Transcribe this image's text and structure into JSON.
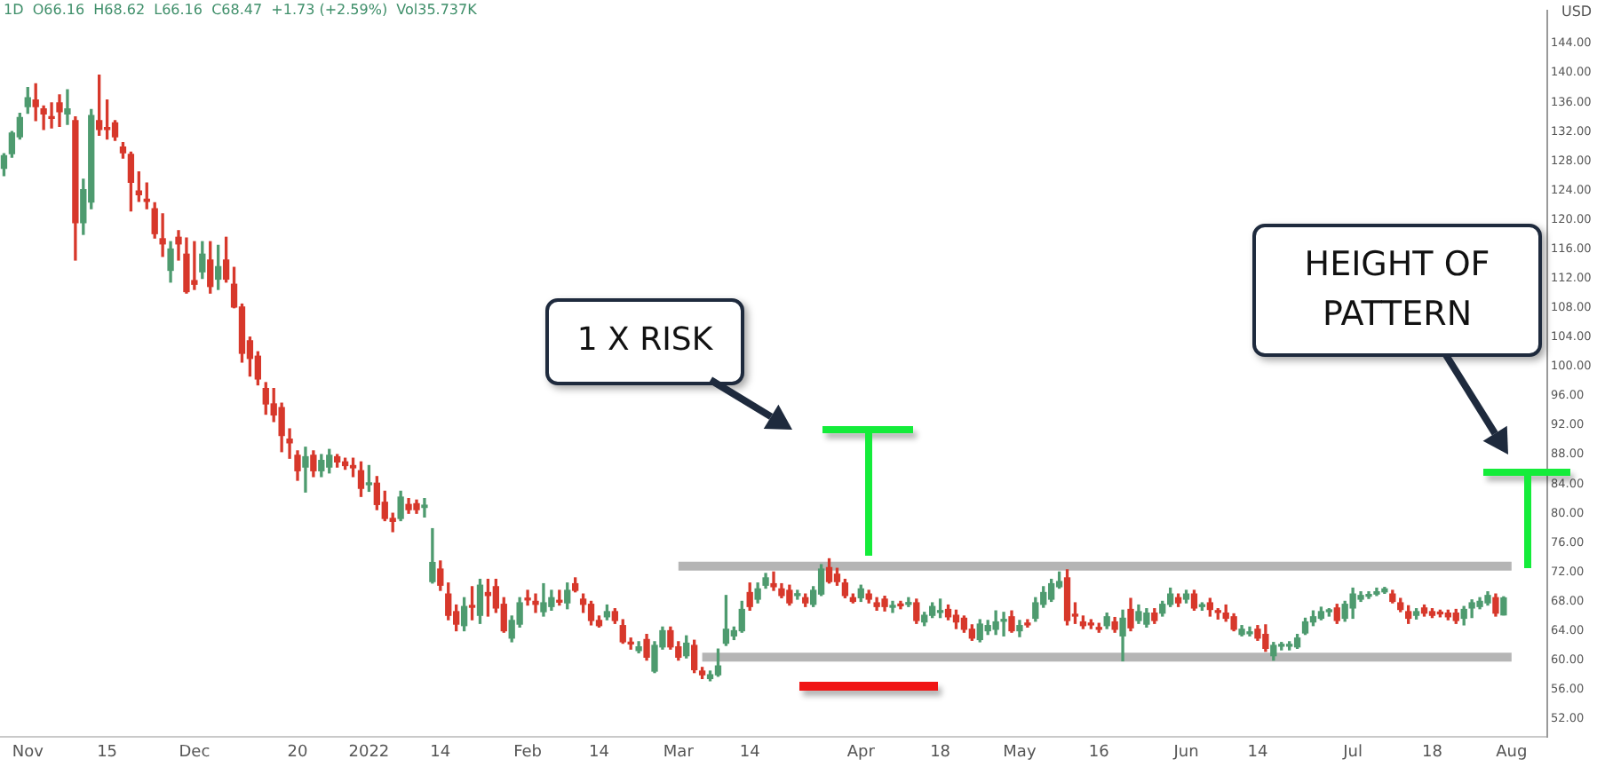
{
  "chart_data": {
    "type": "candlestick",
    "title": "1D  O66.16  H68.62  L66.16  C68.47  +1.73 (+2.59%)  Vol35.737K",
    "ylabel": "USD",
    "annotations": [
      "1 X RISK",
      "HEIGHT OF PATTERN"
    ],
    "grid": false,
    "colors": [
      "#4e9b6f",
      "#4e9b6f",
      "#4e9b6f",
      "#4e9b6f",
      "#d7382b",
      "#d7382b",
      "#d7382b",
      "#d7382b",
      "#4e9b6f",
      "#d7382b",
      "#4e9b6f",
      "#4e9b6f",
      "#d7382b",
      "#d7382b",
      "#d7382b",
      "#d7382b",
      "#d7382b",
      "#d7382b",
      "#d7382b",
      "#d7382b",
      "#d7382b",
      "#4e9b6f",
      "#d7382b",
      "#d7382b",
      "#d7382b",
      "#4e9b6f",
      "#d7382b",
      "#4e9b6f",
      "#d7382b",
      "#d7382b",
      "#d7382b",
      "#d7382b",
      "#d7382b",
      "#d7382b",
      "#d7382b",
      "#d7382b",
      "#d7382b",
      "#d7382b",
      "#4e9b6f",
      "#d7382b",
      "#4e9b6f",
      "#4e9b6f",
      "#d7382b",
      "#d7382b",
      "#d7382b",
      "#d7382b",
      "#4e9b6f",
      "#d7382b",
      "#d7382b",
      "#d7382b",
      "#4e9b6f",
      "#d7382b",
      "#d7382b",
      "#4e9b6f",
      "#4e9b6f",
      "#d7382b",
      "#d7382b",
      "#d7382b",
      "#4e9b6f",
      "#d7382b",
      "#4e9b6f",
      "#d7382b",
      "#d7382b",
      "#d7382b",
      "#4e9b6f",
      "#4e9b6f",
      "#d7382b",
      "#d7382b",
      "#4e9b6f",
      "#4e9b6f",
      "#d7382b",
      "#4e9b6f",
      "#d7382b",
      "#d7382b",
      "#d7382b",
      "#d7382b",
      "#4e9b6f",
      "#d7382b",
      "#d7382b",
      "#d7382b",
      "#4e9b6f",
      "#d7382b",
      "#4e9b6f",
      "#4e9b6f",
      "#d7382b",
      "#d7382b",
      "#4e9b6f",
      "#d7382b",
      "#d7382b",
      "#4e9b6f",
      "#4e9b6f",
      "#4e9b6f",
      "#4e9b6f",
      "#4e9b6f",
      "#d7382b",
      "#4e9b6f",
      "#4e9b6f",
      "#d7382b",
      "#d7382b",
      "#d7382b",
      "#4e9b6f",
      "#d7382b",
      "#4e9b6f",
      "#4e9b6f",
      "#d7382b",
      "#d7382b",
      "#d7382b",
      "#d7382b",
      "#4e9b6f",
      "#d7382b",
      "#d7382b",
      "#d7382b",
      "#4e9b6f",
      "#d7382b",
      "#4e9b6f",
      "#d7382b",
      "#4e9b6f",
      "#4e9b6f",
      "#4e9b6f",
      "#d7382b",
      "#d7382b",
      "#d7382b",
      "#d7382b",
      "#4e9b6f",
      "#4e9b6f",
      "#4e9b6f",
      "#4e9b6f",
      "#d7382b",
      "#4e9b6f",
      "#d7382b",
      "#4e9b6f",
      "#4e9b6f",
      "#4e9b6f",
      "#4e9b6f",
      "#d7382b",
      "#d7382b",
      "#d7382b",
      "#d7382b",
      "#d7382b",
      "#4e9b6f",
      "#d7382b",
      "#4e9b6f",
      "#d7382b",
      "#4e9b6f",
      "#4e9b6f",
      "#d7382b",
      "#4e9b6f",
      "#4e9b6f",
      "#d7382b",
      "#4e9b6f",
      "#d7382b",
      "#4e9b6f",
      "#d7382b",
      "#d7382b",
      "#d7382b",
      "#d7382b",
      "#4e9b6f",
      "#4e9b6f",
      "#d7382b",
      "#d7382b",
      "#4e9b6f",
      "#4e9b6f",
      "#4e9b6f",
      "#4e9b6f",
      "#4e9b6f",
      "#4e9b6f",
      "#4e9b6f",
      "#4e9b6f",
      "#d7382b",
      "#4e9b6f",
      "#4e9b6f",
      "#4e9b6f",
      "#4e9b6f",
      "#4e9b6f",
      "#4e9b6f",
      "#d7382b",
      "#d7382b",
      "#d7382b",
      "#4e9b6f",
      "#d7382b",
      "#d7382b",
      "#d7382b",
      "#d7382b",
      "#d7382b",
      "#4e9b6f",
      "#4e9b6f",
      "#4e9b6f",
      "#4e9b6f",
      "#d7382b",
      "#4e9b6f",
      null
    ],
    "ylim": [
      49.5,
      148.5
    ],
    "yticks": [
      {
        "value": 52,
        "label": "52.00"
      },
      {
        "value": 56,
        "label": "56.00"
      },
      {
        "value": 60,
        "label": "60.00"
      },
      {
        "value": 64,
        "label": "64.00"
      },
      {
        "value": 68,
        "label": "68.00"
      },
      {
        "value": 72,
        "label": "72.00"
      },
      {
        "value": 76,
        "label": "76.00"
      },
      {
        "value": 80,
        "label": "80.00"
      },
      {
        "value": 84,
        "label": "84.00"
      },
      {
        "value": 88,
        "label": "88.00"
      },
      {
        "value": 92,
        "label": "92.00"
      },
      {
        "value": 96,
        "label": "96.00"
      },
      {
        "value": 100,
        "label": "100.00"
      },
      {
        "value": 104,
        "label": "104.00"
      },
      {
        "value": 108,
        "label": "108.00"
      },
      {
        "value": 112,
        "label": "112.00"
      },
      {
        "value": 116,
        "label": "116.00"
      },
      {
        "value": 120,
        "label": "120.00"
      },
      {
        "value": 124,
        "label": "124.00"
      },
      {
        "value": 128,
        "label": "128.00"
      },
      {
        "value": 132,
        "label": "132.00"
      },
      {
        "value": 136,
        "label": "136.00"
      },
      {
        "value": 140,
        "label": "140.00"
      },
      {
        "value": 144,
        "label": "144.00"
      }
    ],
    "categories": [
      null,
      null,
      null,
      "Nov",
      null,
      null,
      null,
      null,
      null,
      null,
      null,
      null,
      null,
      "15",
      null,
      null,
      null,
      null,
      null,
      null,
      null,
      null,
      null,
      null,
      "Dec",
      null,
      null,
      null,
      null,
      null,
      null,
      null,
      null,
      null,
      null,
      null,
      null,
      "20",
      null,
      null,
      null,
      null,
      null,
      null,
      null,
      null,
      "2022",
      null,
      null,
      null,
      null,
      null,
      null,
      null,
      null,
      "14",
      null,
      null,
      null,
      null,
      null,
      null,
      null,
      null,
      null,
      null,
      "Feb",
      null,
      null,
      null,
      null,
      null,
      null,
      null,
      null,
      "14",
      null,
      null,
      null,
      null,
      null,
      null,
      null,
      null,
      null,
      "Mar",
      null,
      null,
      null,
      null,
      null,
      null,
      null,
      null,
      "14",
      null,
      null,
      null,
      null,
      null,
      null,
      null,
      null,
      null,
      null,
      null,
      null,
      null,
      "Apr",
      null,
      null,
      null,
      null,
      null,
      null,
      null,
      null,
      null,
      "18",
      null,
      null,
      null,
      null,
      null,
      null,
      null,
      null,
      null,
      "May",
      null,
      null,
      null,
      null,
      null,
      null,
      null,
      null,
      null,
      "16",
      null,
      null,
      null,
      null,
      null,
      null,
      null,
      null,
      null,
      null,
      "Jun",
      null,
      null,
      null,
      null,
      null,
      null,
      null,
      null,
      "14",
      null,
      null,
      null,
      null,
      null,
      null,
      null,
      null,
      null,
      null,
      null,
      "Jul",
      null,
      null,
      null,
      null,
      null,
      null,
      null,
      null,
      null,
      "18",
      null,
      null,
      null,
      null,
      null,
      null,
      null,
      null,
      null,
      "Aug"
    ],
    "ohlc": [
      [
        127,
        129,
        126,
        128.7
      ],
      [
        129,
        132,
        128.5,
        131.8
      ],
      [
        131.3,
        134.5,
        131,
        133.9
      ],
      [
        135.4,
        138,
        134.5,
        136.6
      ],
      [
        136.3,
        138.5,
        133.5,
        135.4
      ],
      [
        135.1,
        135.5,
        132.3,
        134.4
      ],
      [
        134,
        135.9,
        132.5,
        133.8
      ],
      [
        135.9,
        137,
        132.7,
        134.7
      ],
      [
        134.4,
        137.7,
        133,
        135.1
      ],
      [
        133.5,
        134,
        114.5,
        119.6
      ],
      [
        119.6,
        125.5,
        118,
        124.1
      ],
      [
        122.4,
        135,
        121.5,
        134.2
      ],
      [
        133.5,
        139.7,
        131.5,
        132.3
      ],
      [
        132.5,
        136.3,
        131,
        132.3
      ],
      [
        133.2,
        133.5,
        130.8,
        131.3
      ],
      [
        129.9,
        130.5,
        128.4,
        129.1
      ],
      [
        128.9,
        129.2,
        121.2,
        125.1
      ],
      [
        123.9,
        126.5,
        122.5,
        123.4
      ],
      [
        122.8,
        125,
        121.5,
        122.5
      ],
      [
        121.5,
        122.3,
        117.5,
        118.1
      ],
      [
        117.4,
        120.8,
        115,
        116.7
      ],
      [
        113.1,
        117,
        111.5,
        116
      ],
      [
        117.6,
        118.5,
        114.5,
        116.7
      ],
      [
        115.3,
        117.5,
        110,
        110.2
      ],
      [
        111.7,
        117,
        110.5,
        111.2
      ],
      [
        112.9,
        117,
        112,
        115.3
      ],
      [
        114.5,
        117,
        110,
        110.9
      ],
      [
        111.9,
        116.5,
        110.5,
        113.6
      ],
      [
        114.5,
        117.6,
        111.5,
        111.9
      ],
      [
        111.2,
        113.5,
        108,
        108.1
      ],
      [
        108.1,
        108.5,
        100.6,
        101.8
      ],
      [
        103.5,
        104,
        98.7,
        101.1
      ],
      [
        101.4,
        102,
        97.5,
        98.3
      ],
      [
        97,
        97.8,
        93.5,
        94.9
      ],
      [
        94.9,
        97,
        92.5,
        93.4
      ],
      [
        94.4,
        95,
        88.4,
        90.6
      ],
      [
        90.1,
        91.5,
        87.5,
        89.6
      ],
      [
        87.9,
        88.5,
        84.5,
        85.8
      ],
      [
        86.3,
        89,
        82.9,
        87.7
      ],
      [
        87.9,
        88.5,
        85,
        85.8
      ],
      [
        85.8,
        88,
        85,
        87.2
      ],
      [
        86.3,
        88.7,
        85.5,
        87.9
      ],
      [
        87.7,
        88,
        86.3,
        87
      ],
      [
        87,
        87.5,
        86,
        86.5
      ],
      [
        86.5,
        87.5,
        85,
        86.2
      ],
      [
        85.8,
        87,
        82.3,
        83.4
      ],
      [
        83.9,
        86.5,
        83,
        84.1
      ],
      [
        84.1,
        85,
        80.5,
        81.2
      ],
      [
        81.5,
        83,
        79,
        79.3
      ],
      [
        79.3,
        80,
        77.5,
        78.9
      ],
      [
        79.3,
        83,
        79,
        82.2
      ],
      [
        81.2,
        82,
        80,
        80.5
      ],
      [
        81.3,
        81.8,
        80,
        80.5
      ],
      [
        80.8,
        82,
        79.5,
        81.1
      ],
      [
        70.7,
        77.9,
        70.5,
        73.3
      ],
      [
        72.4,
        73.5,
        69.5,
        70.2
      ],
      [
        69,
        70.5,
        65.5,
        66.1
      ],
      [
        66.6,
        67.5,
        64,
        64.9
      ],
      [
        64.7,
        68.5,
        64,
        67.3
      ],
      [
        67.4,
        70,
        65.5,
        67.2
      ],
      [
        66.1,
        71,
        65,
        70.2
      ],
      [
        69.2,
        71,
        66,
        68.8
      ],
      [
        70,
        71,
        66.5,
        67.1
      ],
      [
        67.6,
        68.5,
        63.8,
        64
      ],
      [
        63,
        66,
        62.5,
        65.4
      ],
      [
        64.9,
        68.5,
        64.5,
        67.8
      ],
      [
        68.4,
        69.5,
        67.5,
        68.2
      ],
      [
        68,
        69,
        66.5,
        67.6
      ],
      [
        66.6,
        70.4,
        66,
        67.8
      ],
      [
        67.3,
        69.5,
        66.8,
        68.5
      ],
      [
        68.1,
        69.5,
        67.5,
        67.9
      ],
      [
        67.8,
        70.5,
        67,
        69.5
      ],
      [
        70.4,
        71.2,
        69.3,
        69.5
      ],
      [
        68.3,
        69,
        66.5,
        67.6
      ],
      [
        67.6,
        68,
        64.8,
        65.4
      ],
      [
        65.4,
        66,
        64.5,
        64.7
      ],
      [
        65.9,
        67.5,
        65.5,
        66.6
      ],
      [
        66.6,
        67,
        65,
        65.4
      ],
      [
        64.7,
        65.5,
        62.3,
        62.5
      ],
      [
        62.4,
        63,
        61.5,
        62.2
      ],
      [
        61.3,
        62.5,
        61,
        61.8
      ],
      [
        62.8,
        63.5,
        60,
        60.4
      ],
      [
        58.5,
        62.5,
        58.3,
        62
      ],
      [
        61.8,
        64.5,
        61.5,
        64
      ],
      [
        64,
        64.5,
        61.5,
        61.8
      ],
      [
        61.8,
        62.5,
        60,
        60.4
      ],
      [
        60.6,
        63.3,
        60.3,
        62.3
      ],
      [
        62,
        62.7,
        58.3,
        58.7
      ],
      [
        58.5,
        59,
        57.5,
        58
      ],
      [
        57.5,
        58.5,
        57.2,
        58
      ],
      [
        58,
        61.5,
        57.8,
        59.2
      ],
      [
        62.3,
        68.8,
        62,
        64.2
      ],
      [
        63.3,
        64.5,
        62.8,
        64
      ],
      [
        64,
        68,
        63.8,
        66.9
      ],
      [
        69.2,
        70.5,
        66.8,
        67.3
      ],
      [
        68.3,
        70.5,
        67.8,
        69.7
      ],
      [
        70.2,
        71.8,
        69.8,
        71.2
      ],
      [
        70.4,
        72,
        69.5,
        70
      ],
      [
        69.7,
        70.4,
        68.5,
        68.8
      ],
      [
        69.5,
        70.2,
        67.5,
        67.8
      ],
      [
        68.8,
        69.5,
        68.3,
        69
      ],
      [
        68.5,
        69,
        67.3,
        67.8
      ],
      [
        67.6,
        70,
        67.3,
        69.5
      ],
      [
        69,
        73,
        68.8,
        72.4
      ],
      [
        72.6,
        73.8,
        70.5,
        70.7
      ],
      [
        71.7,
        72.5,
        70.2,
        70.7
      ],
      [
        70.5,
        71,
        68.5,
        68.8
      ],
      [
        68.5,
        69,
        67.8,
        68
      ],
      [
        68.5,
        70.2,
        68,
        69.7
      ],
      [
        69,
        69.5,
        67.8,
        68.3
      ],
      [
        67.8,
        68.5,
        66.8,
        67.3
      ],
      [
        68.3,
        68.7,
        66.7,
        67.3
      ],
      [
        67.2,
        68,
        66.5,
        67.4
      ],
      [
        67.5,
        68,
        67,
        67.4
      ],
      [
        67.6,
        68.5,
        67.3,
        67.7
      ],
      [
        67.8,
        68.3,
        65,
        65.4
      ],
      [
        65.2,
        66.5,
        64.7,
        66.1
      ],
      [
        66.1,
        67.8,
        65.8,
        67.3
      ],
      [
        66.5,
        68.3,
        65.8,
        66.7
      ],
      [
        66.9,
        67.5,
        65.5,
        65.9
      ],
      [
        66.1,
        66.8,
        64.3,
        65.2
      ],
      [
        65.7,
        66,
        63.8,
        64.2
      ],
      [
        64.2,
        64.8,
        62.7,
        63
      ],
      [
        62.8,
        65.5,
        62.5,
        64.9
      ],
      [
        64,
        65.4,
        63.5,
        64.7
      ],
      [
        64.2,
        66.7,
        63.5,
        65.2
      ],
      [
        65.3,
        66.5,
        63.3,
        65.5
      ],
      [
        65.9,
        66.7,
        63.8,
        64
      ],
      [
        64,
        65.4,
        63.2,
        64.7
      ],
      [
        65,
        65.5,
        64.5,
        64.8
      ],
      [
        65.7,
        68.5,
        65.3,
        67.8
      ],
      [
        67.6,
        70,
        67.2,
        69.2
      ],
      [
        68.3,
        71,
        68,
        70.4
      ],
      [
        70,
        72,
        69.8,
        70.7
      ],
      [
        71.2,
        72.3,
        64.8,
        65.4
      ],
      [
        66.2,
        67.8,
        65,
        66
      ],
      [
        65.2,
        66,
        64.3,
        64.7
      ],
      [
        64.9,
        65.5,
        64.3,
        64.8
      ],
      [
        64.4,
        65,
        63.8,
        64.2
      ],
      [
        64.7,
        66.4,
        64.3,
        65.9
      ],
      [
        65.2,
        65.8,
        63.8,
        64.2
      ],
      [
        63.3,
        66.8,
        59.9,
        65.7
      ],
      [
        66.9,
        68.4,
        64,
        64.4
      ],
      [
        65.4,
        67.5,
        65,
        66.6
      ],
      [
        64.9,
        67,
        64.5,
        66.4
      ],
      [
        66.4,
        67,
        65,
        65.4
      ],
      [
        66.4,
        68,
        66,
        67.6
      ],
      [
        67.6,
        69.8,
        67.3,
        69
      ],
      [
        68.5,
        69,
        67.3,
        67.8
      ],
      [
        68.3,
        69.5,
        67.8,
        69
      ],
      [
        69,
        69.5,
        66.8,
        67.1
      ],
      [
        67.3,
        67.8,
        66.8,
        67.4
      ],
      [
        67.8,
        68.4,
        66,
        66.9
      ],
      [
        66.7,
        67,
        65.6,
        66.5
      ],
      [
        66.4,
        67.5,
        65.3,
        65.7
      ],
      [
        65.9,
        66.3,
        64,
        64.2
      ],
      [
        63.5,
        64.7,
        63.3,
        64.2
      ],
      [
        63.6,
        64.5,
        63.3,
        63.8
      ],
      [
        64.2,
        64.7,
        62.7,
        63
      ],
      [
        63.5,
        64.8,
        61.2,
        61.6
      ],
      [
        60.6,
        62.4,
        60,
        62
      ],
      [
        61.9,
        62.4,
        61.4,
        62.1
      ],
      [
        61.9,
        62.5,
        61.4,
        62.1
      ],
      [
        61.8,
        63.5,
        61.6,
        63
      ],
      [
        63.7,
        65.7,
        63.5,
        65.2
      ],
      [
        65.2,
        66.7,
        64.7,
        65.9
      ],
      [
        65.7,
        67.2,
        65.5,
        66.6
      ],
      [
        66.6,
        67,
        66,
        66.8
      ],
      [
        67.1,
        67.6,
        65,
        65.4
      ],
      [
        65.7,
        68,
        65.3,
        67.6
      ],
      [
        67.1,
        69.8,
        65.7,
        69
      ],
      [
        68.3,
        69.3,
        68,
        68.8
      ],
      [
        68.7,
        69.3,
        68.4,
        68.9
      ],
      [
        69,
        69.8,
        68.8,
        69.3
      ],
      [
        69.3,
        69.9,
        69.1,
        69.7
      ],
      [
        69,
        69.5,
        67.8,
        68
      ],
      [
        67.8,
        68.4,
        66.6,
        66.9
      ],
      [
        66.6,
        67.4,
        65,
        65.7
      ],
      [
        66.1,
        67,
        65.6,
        66.6
      ],
      [
        67.1,
        67.5,
        66,
        66.4
      ],
      [
        66.6,
        67,
        65.8,
        66.1
      ],
      [
        66.4,
        66.8,
        65.9,
        66.3
      ],
      [
        66.4,
        66.8,
        65.5,
        65.9
      ],
      [
        66.4,
        66.9,
        65,
        65.4
      ],
      [
        65.7,
        67.3,
        64.8,
        66.9
      ],
      [
        67.1,
        68.2,
        65.8,
        67.8
      ],
      [
        67.3,
        68.5,
        67,
        68
      ],
      [
        67.8,
        69.3,
        67.5,
        68.8
      ],
      [
        68.5,
        69,
        66,
        66.4
      ],
      [
        66.16,
        68.62,
        66.16,
        68.47
      ],
      null
    ],
    "series": [
      {
        "type": "line",
        "color": "#b5b5b5",
        "values": [
          null,
          null,
          null,
          null,
          null,
          null,
          null,
          null,
          null,
          null,
          null,
          null,
          null,
          null,
          null,
          null,
          null,
          null,
          null,
          null,
          null,
          null,
          null,
          null,
          null,
          null,
          null,
          null,
          null,
          null,
          null,
          null,
          null,
          null,
          null,
          null,
          null,
          null,
          null,
          null,
          null,
          null,
          null,
          null,
          null,
          null,
          null,
          null,
          null,
          null,
          null,
          null,
          null,
          null,
          null,
          null,
          null,
          null,
          null,
          null,
          null,
          null,
          null,
          null,
          null,
          null,
          null,
          null,
          null,
          null,
          null,
          null,
          null,
          null,
          null,
          null,
          null,
          null,
          null,
          null,
          null,
          null,
          null,
          null,
          null,
          72.8,
          null,
          null,
          null,
          null,
          null,
          null,
          null,
          null,
          null,
          null,
          null,
          null,
          null,
          null,
          null,
          null,
          null,
          null,
          null,
          null,
          null,
          null,
          null,
          null,
          null,
          null,
          null,
          null,
          null,
          null,
          null,
          null,
          null,
          null,
          null,
          null,
          null,
          null,
          null,
          null,
          null,
          null,
          null,
          null,
          null,
          null,
          null,
          null,
          null,
          null,
          null,
          null,
          null,
          null,
          null,
          null,
          null,
          null,
          null,
          null,
          null,
          null,
          null,
          null,
          null,
          null,
          null,
          null,
          null,
          null,
          null,
          null,
          null,
          null,
          null,
          null,
          null,
          null,
          null,
          null,
          null,
          null,
          null,
          null,
          null,
          null,
          null,
          null,
          null,
          null,
          null,
          null,
          null,
          null,
          null,
          null,
          null,
          null,
          null,
          null,
          null,
          null,
          null,
          null,
          72.8
        ]
      },
      {
        "type": "line",
        "color": "#b5b5b5",
        "values": [
          null,
          null,
          null,
          null,
          null,
          null,
          null,
          null,
          null,
          null,
          null,
          null,
          null,
          null,
          null,
          null,
          null,
          null,
          null,
          null,
          null,
          null,
          null,
          null,
          null,
          null,
          null,
          null,
          null,
          null,
          null,
          null,
          null,
          null,
          null,
          null,
          null,
          null,
          null,
          null,
          null,
          null,
          null,
          null,
          null,
          null,
          null,
          null,
          null,
          null,
          null,
          null,
          null,
          null,
          null,
          null,
          null,
          null,
          null,
          null,
          null,
          null,
          null,
          null,
          null,
          null,
          null,
          null,
          null,
          null,
          null,
          null,
          null,
          null,
          null,
          null,
          null,
          null,
          null,
          null,
          null,
          null,
          null,
          null,
          null,
          null,
          null,
          null,
          60.4,
          null,
          null,
          null,
          null,
          null,
          null,
          null,
          null,
          null,
          null,
          null,
          null,
          null,
          null,
          null,
          null,
          null,
          null,
          null,
          null,
          null,
          null,
          null,
          null,
          null,
          null,
          null,
          null,
          null,
          null,
          null,
          null,
          null,
          null,
          null,
          null,
          null,
          null,
          null,
          null,
          null,
          null,
          null,
          null,
          null,
          null,
          null,
          null,
          null,
          null,
          null,
          null,
          null,
          null,
          null,
          null,
          null,
          null,
          null,
          null,
          null,
          null,
          null,
          null,
          null,
          null,
          null,
          null,
          null,
          null,
          null,
          null,
          null,
          null,
          null,
          null,
          null,
          null,
          null,
          null,
          null,
          null,
          null,
          null,
          null,
          null,
          null,
          null,
          null,
          null,
          null,
          null,
          null,
          null,
          null,
          null,
          null,
          null,
          null,
          null,
          null,
          60.4
        ]
      }
    ]
  }
}
